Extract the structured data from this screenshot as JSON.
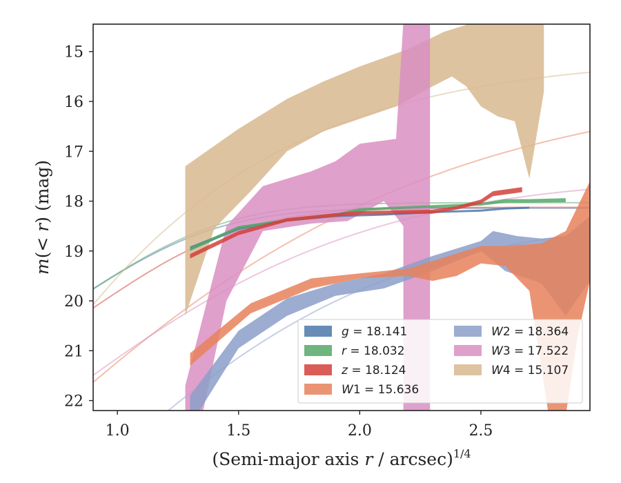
{
  "chart_data": {
    "type": "area",
    "xlabel": "(Semi-major axis r / arcsec)",
    "xlabel_prefix": "(Semi-major axis ",
    "xlabel_var": "r",
    "xlabel_suffix": " / arcsec)",
    "xlabel_exponent": "1/4",
    "ylabel": "m(< r) (mag)",
    "ylabel_prefix": "m",
    "ylabel_mid": "(< ",
    "ylabel_var": "r",
    "ylabel_suffix": ") (mag)",
    "xlim": [
      0.9,
      2.95
    ],
    "ylim": [
      22.2,
      14.45
    ],
    "y_inverted": true,
    "xticks": [
      1.0,
      1.5,
      2.0,
      2.5
    ],
    "xtick_labels": [
      "1.0",
      "1.5",
      "2.0",
      "2.5"
    ],
    "yticks": [
      15,
      16,
      17,
      18,
      19,
      20,
      21,
      22
    ],
    "ytick_labels": [
      "15",
      "16",
      "17",
      "18",
      "19",
      "20",
      "21",
      "22"
    ],
    "grid": false,
    "legend_position": "lower-right",
    "legend_columns": 2,
    "series": [
      {
        "name": "g = 18.141",
        "band": "g",
        "mag": "18.141",
        "color": "#4c78a8",
        "model": {
          "m0": 18.141,
          "a": 3.2,
          "rc": 1.05,
          "p": 2.5
        },
        "band_upper": [
          [
            1.3,
            18.91
          ],
          [
            1.5,
            18.52
          ],
          [
            1.7,
            18.36
          ],
          [
            1.9,
            18.28
          ],
          [
            2.1,
            18.25
          ],
          [
            2.3,
            18.2
          ],
          [
            2.5,
            18.17
          ],
          [
            2.6,
            18.13
          ],
          [
            2.7,
            18.11
          ]
        ],
        "band_lower": [
          [
            1.3,
            18.98
          ],
          [
            1.5,
            18.58
          ],
          [
            1.7,
            18.41
          ],
          [
            1.9,
            18.32
          ],
          [
            2.1,
            18.29
          ],
          [
            2.3,
            18.24
          ],
          [
            2.5,
            18.21
          ],
          [
            2.6,
            18.17
          ],
          [
            2.7,
            18.15
          ]
        ]
      },
      {
        "name": "r = 18.032",
        "band": "r",
        "mag": "18.032",
        "color": "#55a868",
        "model": {
          "m0": 18.032,
          "a": 3.3,
          "rc": 1.07,
          "p": 2.5
        },
        "band_upper": [
          [
            1.3,
            18.93
          ],
          [
            1.5,
            18.5
          ],
          [
            1.7,
            18.36
          ],
          [
            1.9,
            18.25
          ],
          [
            2.0,
            18.14
          ],
          [
            2.2,
            18.1
          ],
          [
            2.5,
            18.04
          ],
          [
            2.6,
            17.96
          ],
          [
            2.7,
            17.96
          ],
          [
            2.85,
            17.94
          ]
        ],
        "band_lower": [
          [
            1.3,
            19.0
          ],
          [
            1.5,
            18.56
          ],
          [
            1.7,
            18.41
          ],
          [
            1.9,
            18.3
          ],
          [
            2.0,
            18.2
          ],
          [
            2.2,
            18.15
          ],
          [
            2.5,
            18.09
          ],
          [
            2.6,
            18.03
          ],
          [
            2.7,
            18.03
          ],
          [
            2.85,
            18.02
          ]
        ]
      },
      {
        "name": "z = 18.124",
        "band": "z",
        "mag": "18.124",
        "color": "#d43f3a",
        "model": {
          "m0": 18.124,
          "a": 3.6,
          "rc": 1.12,
          "p": 2.5
        },
        "band_upper": [
          [
            1.3,
            19.06
          ],
          [
            1.5,
            18.6
          ],
          [
            1.7,
            18.34
          ],
          [
            1.9,
            18.24
          ],
          [
            2.0,
            18.2
          ],
          [
            2.3,
            18.17
          ],
          [
            2.4,
            18.1
          ],
          [
            2.5,
            17.97
          ],
          [
            2.55,
            17.8
          ],
          [
            2.67,
            17.72
          ]
        ],
        "band_lower": [
          [
            1.3,
            19.15
          ],
          [
            1.5,
            18.68
          ],
          [
            1.7,
            18.41
          ],
          [
            1.9,
            18.31
          ],
          [
            2.0,
            18.27
          ],
          [
            2.3,
            18.25
          ],
          [
            2.4,
            18.17
          ],
          [
            2.5,
            18.05
          ],
          [
            2.55,
            17.9
          ],
          [
            2.67,
            17.82
          ]
        ]
      },
      {
        "name": "W1 = 15.636",
        "band": "W1",
        "mag": "15.636",
        "color": "#e8815c",
        "model": {
          "m0": 15.636,
          "a": 9.5,
          "rc": 1.6,
          "p": 1.35
        },
        "band_upper": [
          [
            1.3,
            21.05
          ],
          [
            1.55,
            20.05
          ],
          [
            1.8,
            19.55
          ],
          [
            2.0,
            19.45
          ],
          [
            2.2,
            19.35
          ],
          [
            2.4,
            19.05
          ],
          [
            2.5,
            18.9
          ],
          [
            2.6,
            18.9
          ],
          [
            2.75,
            18.85
          ],
          [
            2.85,
            18.6
          ],
          [
            2.95,
            17.6
          ]
        ],
        "band_lower": [
          [
            1.3,
            21.3
          ],
          [
            1.55,
            20.25
          ],
          [
            1.8,
            19.75
          ],
          [
            2.0,
            19.55
          ],
          [
            2.2,
            19.5
          ],
          [
            2.3,
            19.6
          ],
          [
            2.4,
            19.5
          ],
          [
            2.5,
            19.25
          ],
          [
            2.6,
            19.3
          ],
          [
            2.7,
            19.8
          ],
          [
            2.78,
            22.3
          ],
          [
            2.85,
            22.3
          ],
          [
            2.9,
            20.7
          ],
          [
            2.95,
            19.6
          ]
        ]
      },
      {
        "name": "W2 = 18.364",
        "band": "W2",
        "mag": "18.364",
        "color": "#8c9fc9",
        "model": {
          "m0": 18.364,
          "a": 8.0,
          "rc": 1.45,
          "p": 1.7
        },
        "band_upper": [
          [
            1.3,
            21.9
          ],
          [
            1.5,
            20.6
          ],
          [
            1.7,
            19.95
          ],
          [
            1.9,
            19.65
          ],
          [
            2.1,
            19.45
          ],
          [
            2.3,
            19.1
          ],
          [
            2.5,
            18.8
          ],
          [
            2.55,
            18.6
          ],
          [
            2.65,
            18.7
          ],
          [
            2.75,
            18.75
          ],
          [
            2.85,
            18.7
          ],
          [
            2.95,
            18.3
          ]
        ],
        "band_lower": [
          [
            1.3,
            22.5
          ],
          [
            1.5,
            20.95
          ],
          [
            1.7,
            20.3
          ],
          [
            1.9,
            19.9
          ],
          [
            2.1,
            19.75
          ],
          [
            2.3,
            19.4
          ],
          [
            2.5,
            19.0
          ],
          [
            2.6,
            19.4
          ],
          [
            2.75,
            19.65
          ],
          [
            2.85,
            20.3
          ],
          [
            2.95,
            19.6
          ]
        ]
      },
      {
        "name": "W3 = 17.522",
        "band": "W3",
        "mag": "17.522",
        "color": "#d98fc2",
        "model": {
          "m0": 17.522,
          "a": 6.5,
          "rc": 1.4,
          "p": 1.6
        },
        "band_upper": [
          [
            1.28,
            21.7
          ],
          [
            1.45,
            18.5
          ],
          [
            1.6,
            17.7
          ],
          [
            1.8,
            17.4
          ],
          [
            1.9,
            17.2
          ],
          [
            2.0,
            16.85
          ],
          [
            2.15,
            16.75
          ],
          [
            2.18,
            14.4
          ],
          [
            2.29,
            14.4
          ],
          [
            2.29,
            22.3
          ]
        ],
        "band_lower": [
          [
            1.28,
            22.3
          ],
          [
            1.35,
            22.3
          ],
          [
            1.45,
            20.0
          ],
          [
            1.6,
            18.6
          ],
          [
            1.8,
            18.45
          ],
          [
            1.95,
            18.4
          ],
          [
            2.1,
            18.0
          ],
          [
            2.18,
            18.5
          ],
          [
            2.18,
            22.3
          ]
        ]
      },
      {
        "name": "W4 = 15.107",
        "band": "W4",
        "mag": "15.107",
        "color": "#d8b990",
        "model": {
          "m0": 15.107,
          "a": 12.0,
          "rc": 1.0,
          "p": 1.2
        },
        "band_upper": [
          [
            1.28,
            17.3
          ],
          [
            1.5,
            16.55
          ],
          [
            1.7,
            15.95
          ],
          [
            1.85,
            15.6
          ],
          [
            2.0,
            15.3
          ],
          [
            2.2,
            14.95
          ],
          [
            2.35,
            14.6
          ],
          [
            2.45,
            14.45
          ],
          [
            2.76,
            14.45
          ]
        ],
        "band_lower": [
          [
            1.28,
            20.3
          ],
          [
            1.4,
            18.55
          ],
          [
            1.55,
            17.8
          ],
          [
            1.7,
            17.0
          ],
          [
            1.85,
            16.6
          ],
          [
            2.0,
            16.35
          ],
          [
            2.15,
            16.1
          ],
          [
            2.3,
            15.7
          ],
          [
            2.38,
            15.5
          ],
          [
            2.44,
            15.7
          ],
          [
            2.5,
            16.1
          ],
          [
            2.57,
            16.3
          ],
          [
            2.64,
            16.4
          ],
          [
            2.7,
            17.55
          ],
          [
            2.76,
            15.8
          ]
        ]
      }
    ]
  }
}
